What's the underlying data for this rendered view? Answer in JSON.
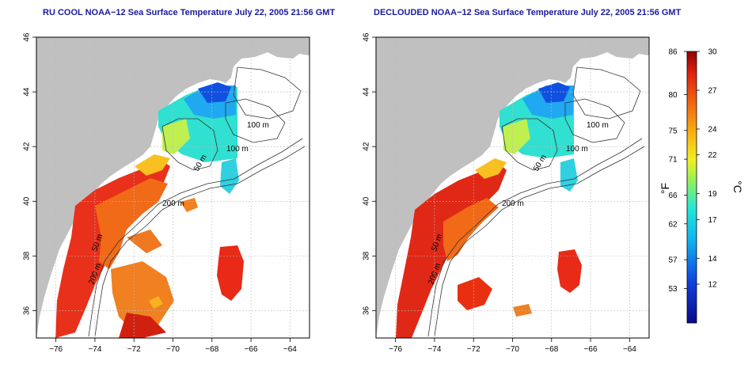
{
  "panels": [
    {
      "id": "left",
      "title": "RU COOL NOAA−12 Sea Surface Temperature July 22, 2005 21:56 GMT"
    },
    {
      "id": "right",
      "title": "DECLOUDED NOAA−12 Sea Surface Temperature July 22, 2005 21:56 GMT"
    }
  ],
  "axes": {
    "x_ticks": [
      -76,
      -74,
      -72,
      -70,
      -68,
      -66,
      -64
    ],
    "y_ticks": [
      36,
      38,
      40,
      42,
      44,
      46
    ],
    "x_range": [
      -77,
      -63
    ],
    "y_range": [
      35,
      46
    ]
  },
  "contour_labels": [
    "100 m",
    "100 m",
    "50 m",
    "200 m",
    "50 m",
    "200 m"
  ],
  "colorbar": {
    "fahrenheit_unit": "°F",
    "celsius_unit": "°C",
    "fahrenheit_ticks": [
      "86",
      "80",
      "75",
      "71",
      "66",
      "62",
      "57",
      "53"
    ],
    "celsius_ticks": [
      "30",
      "27",
      "24",
      "22",
      "19",
      "17",
      "14",
      "12"
    ],
    "celsius_range": [
      9,
      30
    ]
  },
  "colors": {
    "land": "#c0c0c0",
    "grid": "#bbbbbb",
    "title": "#1a1aa0",
    "contour": "#333333"
  }
}
